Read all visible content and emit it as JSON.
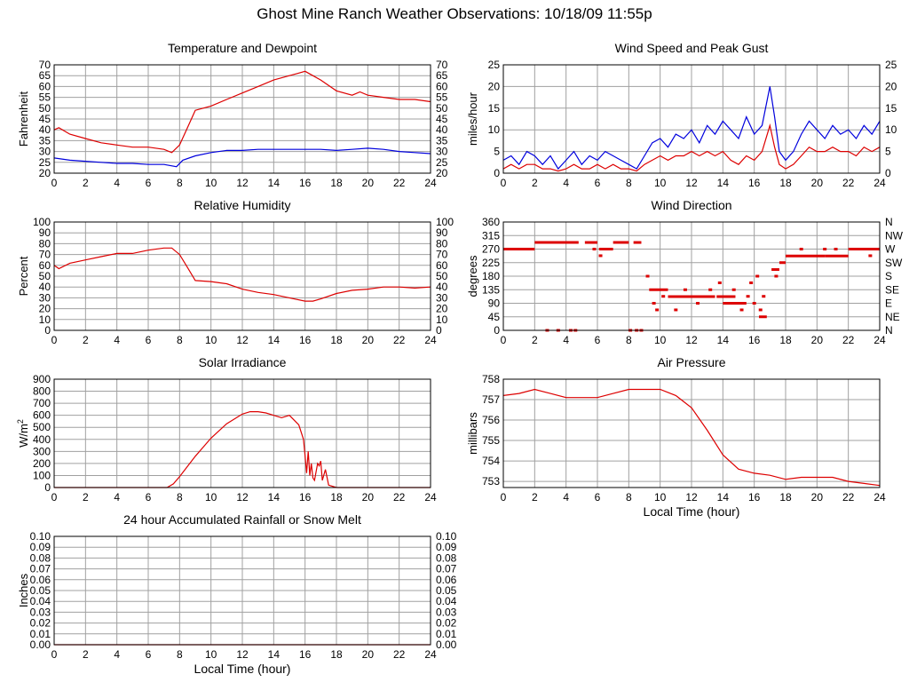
{
  "page": {
    "title": "Ghost Mine Ranch Weather Observations: 10/18/09 11:55p"
  },
  "colors": {
    "red": "#dd0000",
    "blue": "#0000dd",
    "grid": "#a0a0a0",
    "frame": "#000000"
  },
  "chart_data": [
    {
      "id": "temp",
      "type": "line",
      "title": "Temperature and Dewpoint",
      "ylabel": "Fahrenheit",
      "xlabel": "",
      "xlim": [
        0,
        24
      ],
      "ylim": [
        20,
        70
      ],
      "xticks": [
        0,
        2,
        4,
        6,
        8,
        10,
        12,
        14,
        16,
        18,
        20,
        22,
        24
      ],
      "yticks": [
        20,
        25,
        30,
        35,
        40,
        45,
        50,
        55,
        60,
        65,
        70
      ],
      "right_axis": true,
      "grid": true,
      "series": [
        {
          "color": "red",
          "x": [
            0,
            0.3,
            1,
            2,
            3,
            4,
            5,
            6,
            7,
            7.5,
            8,
            8.5,
            9,
            10,
            11,
            12,
            13,
            14,
            15,
            15.5,
            16,
            16.5,
            17,
            18,
            19,
            19.5,
            20,
            21,
            22,
            23,
            24
          ],
          "y": [
            40,
            41,
            38,
            36,
            34,
            33,
            32,
            32,
            31,
            29.5,
            33,
            41,
            49,
            51,
            54,
            57,
            60,
            63,
            65,
            66,
            67,
            65,
            63,
            58,
            56,
            57.5,
            56,
            55,
            54,
            54,
            53
          ]
        },
        {
          "color": "blue",
          "x": [
            0,
            1,
            2,
            3,
            4,
            5,
            6,
            7,
            7.8,
            8.2,
            9,
            10,
            11,
            12,
            13,
            14,
            15,
            16,
            17,
            18,
            19,
            20,
            21,
            22,
            23,
            24
          ],
          "y": [
            27,
            26,
            25.5,
            25,
            24.5,
            24.5,
            24,
            24,
            23,
            26,
            28,
            29.5,
            30.5,
            30.5,
            31,
            31,
            31,
            31,
            31,
            30.5,
            31,
            31.5,
            31,
            30,
            29.5,
            29
          ]
        }
      ]
    },
    {
      "id": "wind",
      "type": "line",
      "title": "Wind Speed and Peak Gust",
      "ylabel": "miles/hour",
      "xlabel": "",
      "xlim": [
        0,
        24
      ],
      "ylim": [
        0,
        25
      ],
      "xticks": [
        0,
        2,
        4,
        6,
        8,
        10,
        12,
        14,
        16,
        18,
        20,
        22,
        24
      ],
      "yticks": [
        0,
        5,
        10,
        15,
        20,
        25
      ],
      "right_axis": true,
      "grid": true,
      "series": [
        {
          "color": "blue",
          "x": [
            0,
            0.5,
            1,
            1.5,
            2,
            2.5,
            3,
            3.5,
            4,
            4.5,
            5,
            5.5,
            6,
            6.5,
            7,
            7.5,
            8,
            8.5,
            9,
            9.5,
            10,
            10.5,
            11,
            11.5,
            12,
            12.5,
            13,
            13.5,
            14,
            14.5,
            15,
            15.5,
            16,
            16.5,
            17,
            17.3,
            17.6,
            18,
            18.5,
            19,
            19.5,
            20,
            20.5,
            21,
            21.5,
            22,
            22.5,
            23,
            23.5,
            24
          ],
          "y": [
            3,
            4,
            2,
            5,
            4,
            2,
            4,
            1,
            3,
            5,
            2,
            4,
            3,
            5,
            4,
            3,
            2,
            1,
            4,
            7,
            8,
            6,
            9,
            8,
            10,
            7,
            11,
            9,
            12,
            10,
            8,
            13,
            9,
            11,
            20,
            13,
            5,
            3,
            5,
            9,
            12,
            10,
            8,
            11,
            9,
            10,
            8,
            11,
            9,
            12
          ]
        },
        {
          "color": "red",
          "x": [
            0,
            0.5,
            1,
            1.5,
            2,
            2.5,
            3,
            3.5,
            4,
            4.5,
            5,
            5.5,
            6,
            6.5,
            7,
            7.5,
            8,
            8.5,
            9,
            9.5,
            10,
            10.5,
            11,
            11.5,
            12,
            12.5,
            13,
            13.5,
            14,
            14.5,
            15,
            15.5,
            16,
            16.5,
            17,
            17.3,
            17.6,
            18,
            18.5,
            19,
            19.5,
            20,
            20.5,
            21,
            21.5,
            22,
            22.5,
            23,
            23.5,
            24
          ],
          "y": [
            1,
            2,
            1,
            2,
            2,
            1,
            1,
            0.5,
            1,
            2,
            1,
            1,
            2,
            1,
            2,
            1,
            1,
            0.5,
            2,
            3,
            4,
            3,
            4,
            4,
            5,
            4,
            5,
            4,
            5,
            3,
            2,
            4,
            3,
            5,
            11,
            6,
            2,
            1,
            2,
            4,
            6,
            5,
            5,
            6,
            5,
            5,
            4,
            6,
            5,
            6
          ]
        }
      ]
    },
    {
      "id": "rh",
      "type": "line",
      "title": "Relative Humidity",
      "ylabel": "Percent",
      "xlabel": "",
      "xlim": [
        0,
        24
      ],
      "ylim": [
        0,
        100
      ],
      "xticks": [
        0,
        2,
        4,
        6,
        8,
        10,
        12,
        14,
        16,
        18,
        20,
        22,
        24
      ],
      "yticks": [
        0,
        10,
        20,
        30,
        40,
        50,
        60,
        70,
        80,
        90,
        100
      ],
      "right_axis": true,
      "grid": true,
      "series": [
        {
          "color": "red",
          "x": [
            0,
            0.3,
            1,
            2,
            3,
            4,
            5,
            6,
            7,
            7.5,
            8,
            8.5,
            9,
            10,
            11,
            12,
            13,
            14,
            15,
            16,
            16.5,
            17,
            18,
            19,
            20,
            21,
            22,
            23,
            24
          ],
          "y": [
            60,
            57,
            62,
            65,
            68,
            71,
            71,
            74,
            76,
            76,
            70,
            58,
            46,
            45,
            43,
            38,
            35,
            33,
            30,
            27,
            27,
            29,
            34,
            37,
            38,
            40,
            40,
            39,
            40
          ]
        }
      ]
    },
    {
      "id": "wdir",
      "type": "scatter",
      "title": "Wind Direction",
      "ylabel": "degrees",
      "xlabel": "",
      "xlim": [
        0,
        24
      ],
      "ylim": [
        0,
        360
      ],
      "xticks": [
        0,
        2,
        4,
        6,
        8,
        10,
        12,
        14,
        16,
        18,
        20,
        22,
        24
      ],
      "yticks": [
        0,
        45,
        90,
        135,
        180,
        225,
        270,
        315,
        360
      ],
      "right_labels": [
        "N",
        "NE",
        "E",
        "SE",
        "S",
        "SW",
        "W",
        "NW",
        "N"
      ],
      "grid": true,
      "series": [
        {
          "color": "red",
          "segments": [
            [
              0,
              2,
              270
            ],
            [
              2,
              4.8,
              292
            ],
            [
              5.2,
              6,
              292
            ],
            [
              6.1,
              7,
              270
            ],
            [
              7,
              8,
              292
            ],
            [
              8.3,
              8.8,
              292
            ],
            [
              9.3,
              10.5,
              135
            ],
            [
              10.5,
              13.5,
              112
            ],
            [
              13.6,
              14.8,
              112
            ],
            [
              14,
              15.5,
              90
            ],
            [
              16.3,
              16.8,
              45
            ],
            [
              17.1,
              17.6,
              202
            ],
            [
              17.6,
              18,
              225
            ],
            [
              18,
              20.5,
              247
            ],
            [
              20.5,
              22,
              247
            ],
            [
              22,
              24,
              270
            ]
          ],
          "points": [
            [
              2.8,
              0
            ],
            [
              3.5,
              0
            ],
            [
              4.3,
              0
            ],
            [
              4.6,
              0
            ],
            [
              6.2,
              248
            ],
            [
              5.8,
              270
            ],
            [
              8.1,
              0
            ],
            [
              8.5,
              0
            ],
            [
              8.8,
              0
            ],
            [
              9.2,
              180
            ],
            [
              9.6,
              90
            ],
            [
              9.8,
              68
            ],
            [
              10.2,
              113
            ],
            [
              11,
              68
            ],
            [
              11.6,
              135
            ],
            [
              12.4,
              90
            ],
            [
              13.2,
              135
            ],
            [
              13.8,
              158
            ],
            [
              14.2,
              90
            ],
            [
              14.7,
              135
            ],
            [
              15.2,
              68
            ],
            [
              15.6,
              113
            ],
            [
              15.8,
              158
            ],
            [
              16,
              90
            ],
            [
              16.2,
              180
            ],
            [
              16.4,
              68
            ],
            [
              16.6,
              113
            ],
            [
              17.4,
              180
            ],
            [
              19,
              270
            ],
            [
              20.5,
              270
            ],
            [
              21.2,
              270
            ],
            [
              23.4,
              248
            ]
          ]
        }
      ]
    },
    {
      "id": "solar",
      "type": "line",
      "title": "Solar Irradiance",
      "ylabel": "W/m2",
      "xlabel": "",
      "xlim": [
        0,
        24
      ],
      "ylim": [
        0,
        900
      ],
      "xticks": [
        0,
        2,
        4,
        6,
        8,
        10,
        12,
        14,
        16,
        18,
        20,
        22,
        24
      ],
      "yticks": [
        0,
        100,
        200,
        300,
        400,
        500,
        600,
        700,
        800,
        900
      ],
      "right_axis": false,
      "grid": true,
      "series": [
        {
          "color": "red",
          "x": [
            0,
            7.2,
            7.6,
            8,
            9,
            10,
            11,
            12,
            12.5,
            13,
            13.5,
            14,
            14.5,
            15,
            15.3,
            15.6,
            15.9,
            16,
            16.1,
            16.2,
            16.3,
            16.4,
            16.5,
            16.6,
            16.8,
            16.9,
            17,
            17.1,
            17.3,
            17.5,
            18,
            24
          ],
          "y": [
            0,
            0,
            30,
            90,
            260,
            410,
            530,
            610,
            630,
            630,
            620,
            600,
            580,
            600,
            560,
            520,
            400,
            260,
            120,
            300,
            100,
            200,
            80,
            60,
            200,
            180,
            220,
            60,
            150,
            20,
            0,
            0
          ]
        }
      ]
    },
    {
      "id": "pressure",
      "type": "line",
      "title": "Air Pressure",
      "ylabel": "millibars",
      "xlabel": "Local Time (hour)",
      "xlim": [
        0,
        24
      ],
      "ylim": [
        752.7,
        758
      ],
      "xticks": [
        0,
        2,
        4,
        6,
        8,
        10,
        12,
        14,
        16,
        18,
        20,
        22,
        24
      ],
      "yticks": [
        753,
        754,
        755,
        756,
        757,
        758
      ],
      "right_axis": false,
      "grid": true,
      "series": [
        {
          "color": "red",
          "x": [
            0,
            1,
            2,
            3,
            4,
            5,
            6,
            7,
            8,
            9,
            10,
            11,
            12,
            13,
            14,
            15,
            16,
            17,
            18,
            19,
            20,
            21,
            22,
            23,
            24
          ],
          "y": [
            757.2,
            757.3,
            757.5,
            757.3,
            757.1,
            757.1,
            757.1,
            757.3,
            757.5,
            757.5,
            757.5,
            757.2,
            756.6,
            755.5,
            754.3,
            753.6,
            753.4,
            753.3,
            753.1,
            753.2,
            753.2,
            753.2,
            753.0,
            752.9,
            752.8
          ]
        }
      ]
    },
    {
      "id": "rain",
      "type": "line",
      "title": "24 hour Accumulated Rainfall or Snow Melt",
      "ylabel": "Inches",
      "xlabel": "Local Time (hour)",
      "xlim": [
        0,
        24
      ],
      "ylim": [
        0,
        0.1
      ],
      "xticks": [
        0,
        2,
        4,
        6,
        8,
        10,
        12,
        14,
        16,
        18,
        20,
        22,
        24
      ],
      "yticks": [
        "0.00",
        "0.01",
        "0.02",
        "0.03",
        "0.04",
        "0.05",
        "0.06",
        "0.07",
        "0.08",
        "0.09",
        "0.10"
      ],
      "right_axis": true,
      "grid": true,
      "series": [
        {
          "color": "red",
          "x": [
            0,
            24
          ],
          "y": [
            0,
            0
          ]
        }
      ]
    }
  ]
}
